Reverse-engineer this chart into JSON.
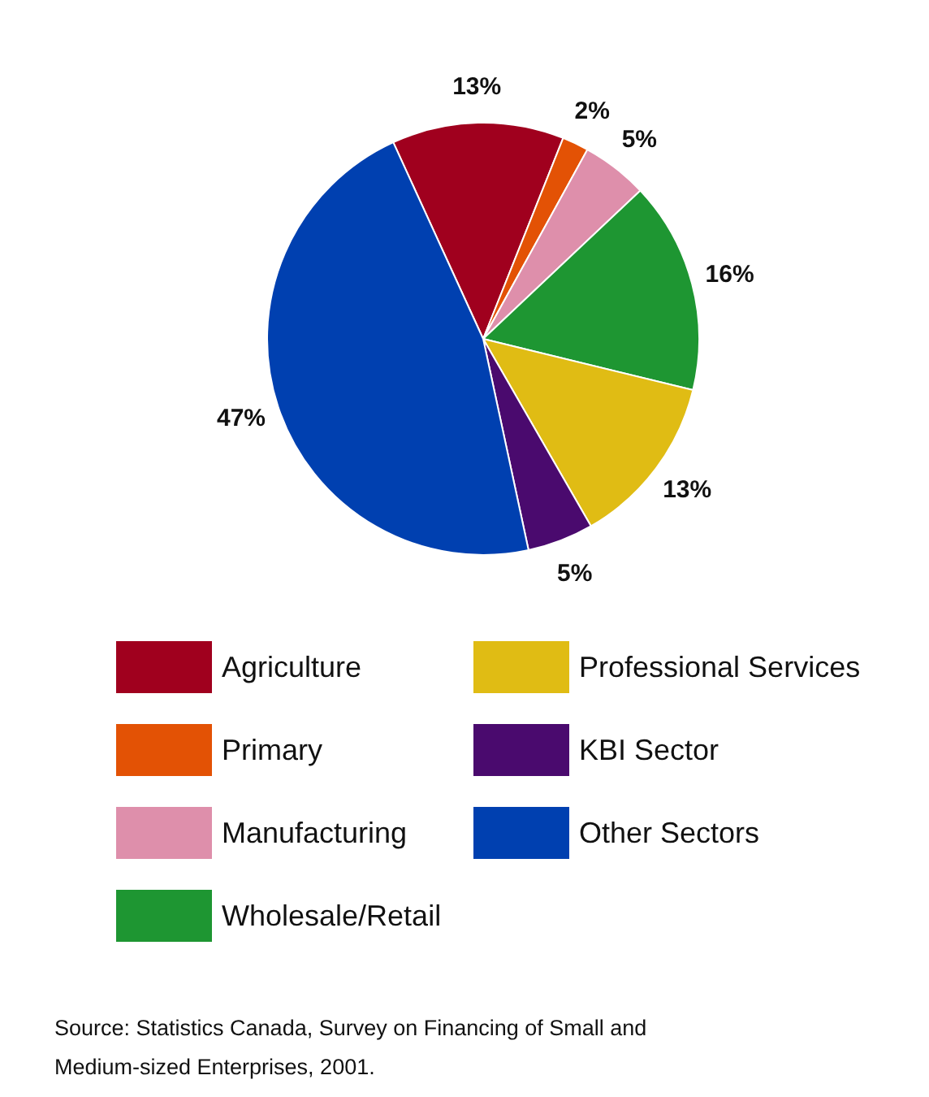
{
  "chart_data": {
    "type": "pie",
    "categories": [
      "Agriculture",
      "Primary",
      "Manufacturing",
      "Wholesale/Retail",
      "Professional Services",
      "KBI Sector",
      "Other Sectors"
    ],
    "values": [
      13,
      2,
      5,
      16,
      13,
      5,
      47
    ],
    "colors": [
      "#a0001e",
      "#e35205",
      "#de8fab",
      "#1e9632",
      "#e0bc14",
      "#4a0a6e",
      "#0040b0"
    ],
    "value_labels": [
      "13%",
      "2%",
      "5%",
      "16%",
      "13%",
      "5%",
      "47%"
    ],
    "legend": "bottom",
    "annotations": [
      "Source: Statistics Canada, Survey on Financing of Small and Medium-sized Enterprises, 2001."
    ]
  }
}
